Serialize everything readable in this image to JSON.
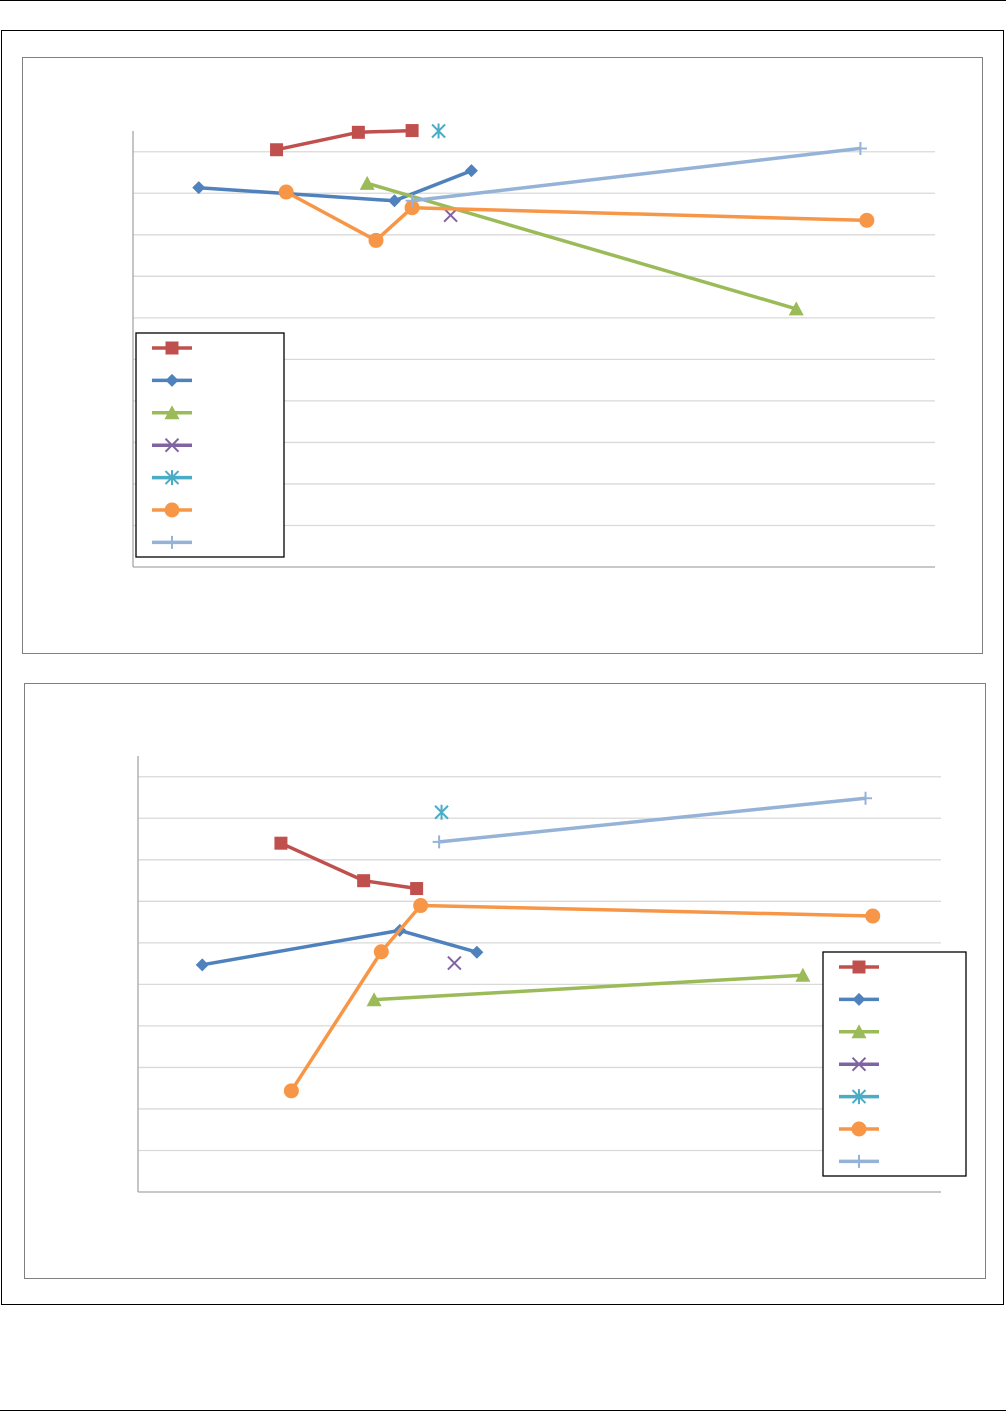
{
  "colors": {
    "series": [
      "#c0504d",
      "#4f81bd",
      "#9bbb59",
      "#8064a2",
      "#4bacc6",
      "#f79646",
      "#95b3d7"
    ],
    "grid": "#d9d9d9",
    "axis": "#a6a6a6",
    "frame": "#7f7f7f"
  },
  "chart_data": [
    {
      "type": "line",
      "title": "",
      "xlabel": "",
      "ylabel": "",
      "xlim": [
        0,
        100
      ],
      "ylim": [
        0,
        100
      ],
      "grid": true,
      "legend": "bottom-left",
      "series": [
        {
          "marker": "square",
          "points": [
            [
              17.9,
              95.7
            ],
            [
              28.1,
              99.7
            ],
            [
              34.8,
              100.1
            ]
          ]
        },
        {
          "marker": "diamond",
          "points": [
            [
              8.2,
              87.0
            ],
            [
              32.6,
              84.0
            ],
            [
              42.2,
              90.9
            ]
          ]
        },
        {
          "marker": "triangle",
          "points": [
            [
              29.2,
              88.0
            ],
            [
              82.7,
              59.2
            ]
          ]
        },
        {
          "marker": "x",
          "points": [
            [
              39.6,
              80.7
            ]
          ]
        },
        {
          "marker": "star",
          "points": [
            [
              38.1,
              100.0
            ]
          ]
        },
        {
          "marker": "circle",
          "points": [
            [
              19.1,
              86.0
            ],
            [
              30.3,
              74.9
            ],
            [
              34.8,
              82.4
            ],
            [
              91.5,
              79.5
            ]
          ]
        },
        {
          "marker": "plus",
          "points": [
            [
              34.8,
              84.0
            ],
            [
              90.7,
              96.0
            ]
          ]
        }
      ]
    },
    {
      "type": "line",
      "title": "",
      "xlabel": "",
      "ylabel": "",
      "xlim": [
        0,
        100
      ],
      "ylim": [
        0,
        100
      ],
      "grid": true,
      "legend": "bottom-right",
      "series": [
        {
          "marker": "square",
          "points": [
            [
              17.8,
              80.0
            ],
            [
              28.1,
              71.4
            ],
            [
              34.7,
              69.6
            ]
          ]
        },
        {
          "marker": "diamond",
          "points": [
            [
              8.0,
              52.1
            ],
            [
              32.6,
              60.0
            ],
            [
              42.2,
              55.0
            ]
          ]
        },
        {
          "marker": "triangle",
          "points": [
            [
              29.4,
              44.1
            ],
            [
              82.8,
              49.7
            ]
          ]
        },
        {
          "marker": "x",
          "points": [
            [
              39.4,
              52.5
            ]
          ]
        },
        {
          "marker": "star",
          "points": [
            [
              37.8,
              87.1
            ]
          ]
        },
        {
          "marker": "circle",
          "points": [
            [
              19.1,
              23.2
            ],
            [
              30.3,
              55.1
            ],
            [
              35.2,
              65.7
            ],
            [
              91.5,
              63.3
            ]
          ]
        },
        {
          "marker": "plus",
          "points": [
            [
              37.5,
              80.3
            ],
            [
              90.6,
              90.3
            ]
          ]
        }
      ]
    }
  ]
}
